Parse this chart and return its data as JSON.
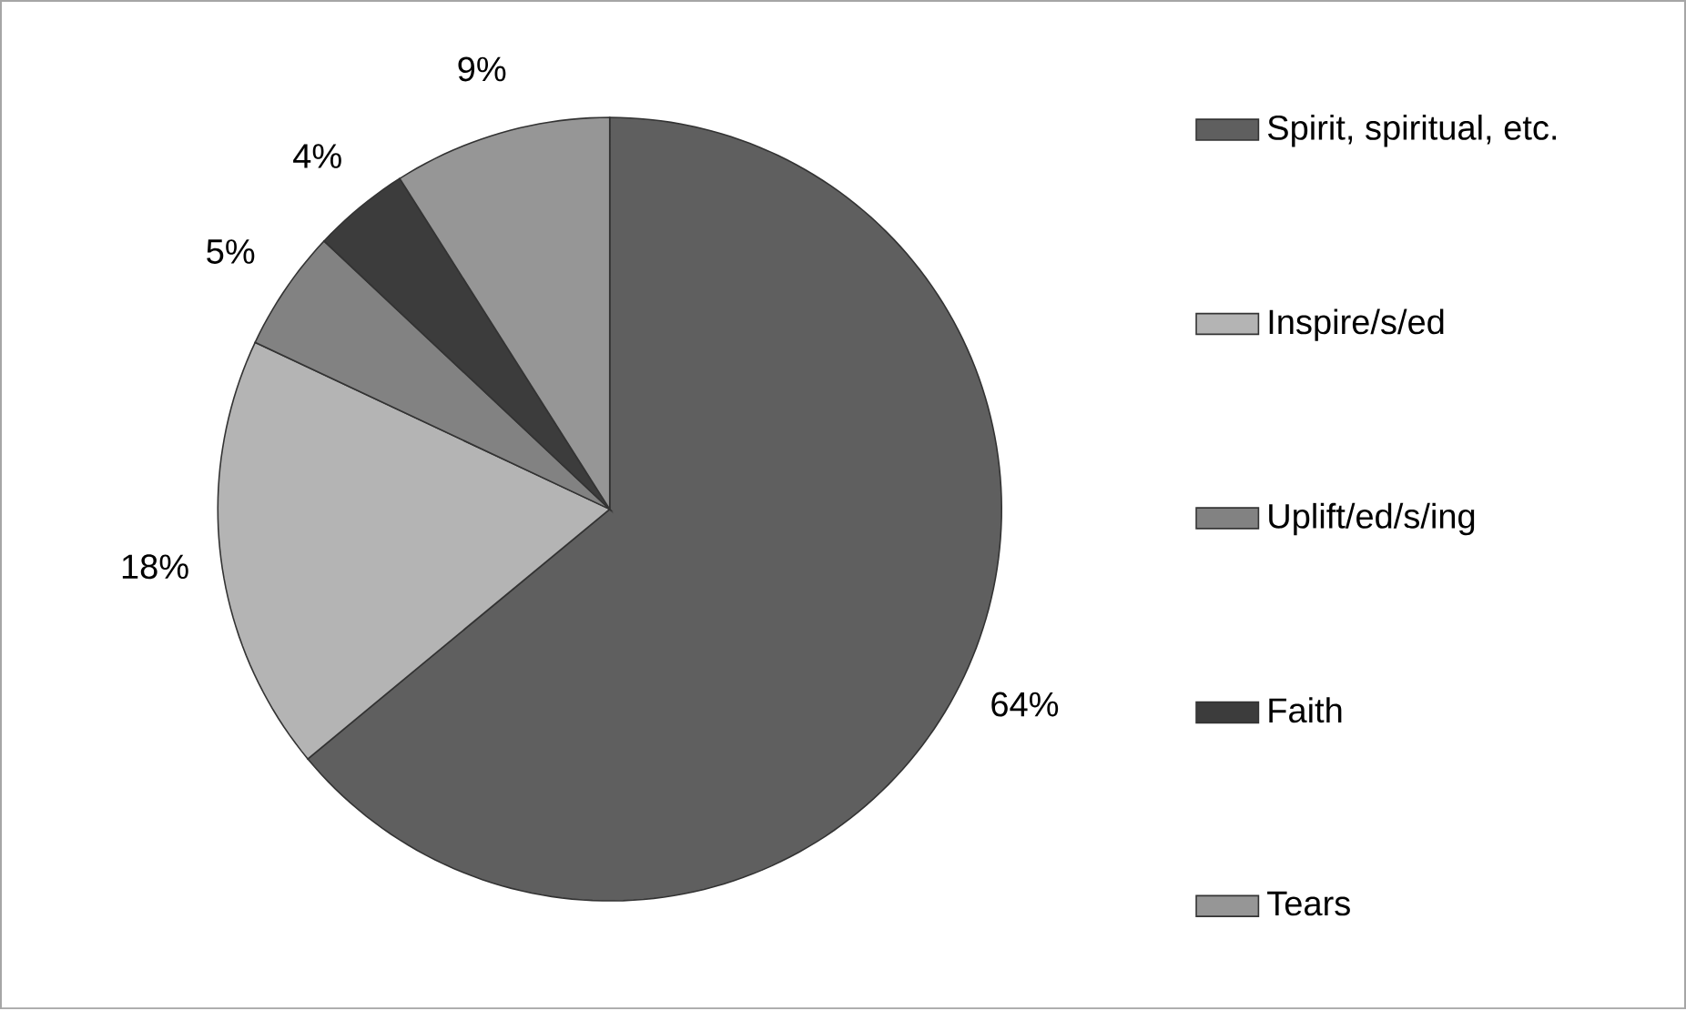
{
  "chart_data": {
    "type": "pie",
    "categories": [
      "Spirit, spiritual, etc.",
      "Inspire/s/ed",
      "Uplift/ed/s/ing",
      "Faith",
      "Tears"
    ],
    "values": [
      64,
      18,
      5,
      4,
      9
    ],
    "colors": [
      "#5f5f5f",
      "#b4b4b4",
      "#828282",
      "#3c3c3c",
      "#969696"
    ],
    "value_labels": [
      "64%",
      "18%",
      "5%",
      "4%",
      "9%"
    ],
    "legend": "right"
  }
}
